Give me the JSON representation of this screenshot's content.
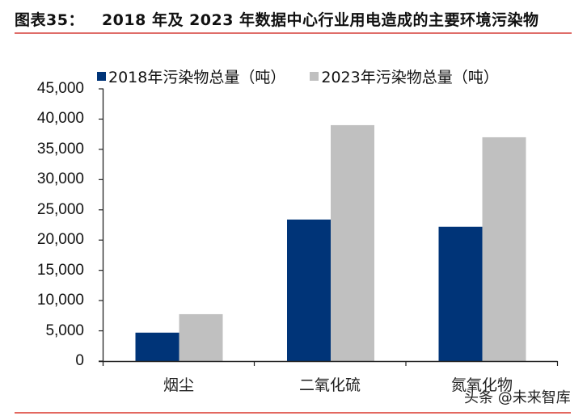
{
  "header": {
    "figure_label": "图表35：",
    "title": "2018 年及 2023 年数据中心行业用电造成的主要环境污染物"
  },
  "legend": {
    "items": [
      {
        "label": "2018年污染物总量（吨）",
        "color": "#003478"
      },
      {
        "label": "2023年污染物总量（吨）",
        "color": "#c0c0c0"
      }
    ]
  },
  "y_axis": {
    "ticks": [
      "45,000",
      "40,000",
      "35,000",
      "30,000",
      "25,000",
      "20,000",
      "15,000",
      "10,000",
      "5,000",
      "0"
    ]
  },
  "x_axis": {
    "categories": [
      "烟尘",
      "二氧化硫",
      "氮氧化物"
    ]
  },
  "watermark": "头条 @未来智库",
  "colors": {
    "series_2018": "#003478",
    "series_2023": "#c0c0c0",
    "accent_rule": "#d9534f"
  },
  "chart_data": {
    "type": "bar",
    "title": "2018 年及 2023 年数据中心行业用电造成的主要环境污染物",
    "categories": [
      "烟尘",
      "二氧化硫",
      "氮氧化物"
    ],
    "series": [
      {
        "name": "2018年污染物总量（吨）",
        "values": [
          4700,
          23400,
          22200
        ]
      },
      {
        "name": "2023年污染物总量（吨）",
        "values": [
          7750,
          39000,
          37000
        ]
      }
    ],
    "xlabel": "",
    "ylabel": "",
    "ylim": [
      0,
      45000
    ],
    "yticks": [
      0,
      5000,
      10000,
      15000,
      20000,
      25000,
      30000,
      35000,
      40000,
      45000
    ],
    "grid": false,
    "legend_position": "top"
  }
}
